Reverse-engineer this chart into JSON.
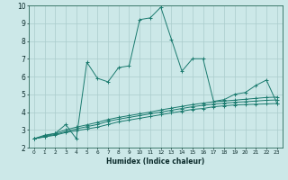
{
  "xlabel": "Humidex (Indice chaleur)",
  "x_values": [
    0,
    1,
    2,
    3,
    4,
    5,
    6,
    7,
    8,
    9,
    10,
    11,
    12,
    13,
    14,
    15,
    16,
    17,
    18,
    19,
    20,
    21,
    22,
    23
  ],
  "line1": [
    2.5,
    2.7,
    2.8,
    3.3,
    2.5,
    6.8,
    5.9,
    5.7,
    6.5,
    6.6,
    9.2,
    9.3,
    9.9,
    8.1,
    6.3,
    7.0,
    7.0,
    4.6,
    4.7,
    5.0,
    5.1,
    5.5,
    5.8,
    4.5
  ],
  "line2": [
    2.5,
    2.6,
    2.7,
    2.85,
    2.95,
    3.05,
    3.15,
    3.3,
    3.45,
    3.55,
    3.65,
    3.75,
    3.85,
    3.95,
    4.05,
    4.15,
    4.2,
    4.3,
    4.35,
    4.4,
    4.42,
    4.44,
    4.46,
    4.48
  ],
  "line3": [
    2.5,
    2.62,
    2.74,
    2.9,
    3.05,
    3.18,
    3.3,
    3.48,
    3.6,
    3.7,
    3.8,
    3.9,
    4.0,
    4.1,
    4.2,
    4.3,
    4.38,
    4.45,
    4.5,
    4.55,
    4.58,
    4.62,
    4.66,
    4.68
  ],
  "line4": [
    2.5,
    2.65,
    2.8,
    3.0,
    3.15,
    3.28,
    3.42,
    3.58,
    3.7,
    3.8,
    3.9,
    4.0,
    4.12,
    4.22,
    4.32,
    4.42,
    4.5,
    4.58,
    4.62,
    4.67,
    4.72,
    4.77,
    4.82,
    4.84
  ],
  "color": "#1a7a6e",
  "bg_color": "#cce8e8",
  "grid_color": "#aacccc",
  "ylim": [
    2,
    10
  ],
  "xlim": [
    0,
    23
  ]
}
